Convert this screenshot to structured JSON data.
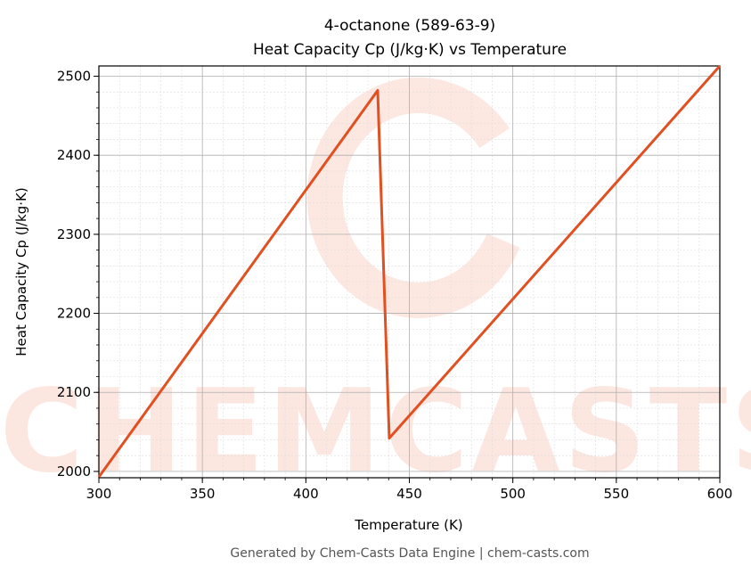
{
  "chart_data": {
    "type": "line",
    "title": "4-octanone (589-63-9)",
    "subtitle": "Heat Capacity Cp (J/kg·K) vs Temperature",
    "xlabel": "Temperature (K)",
    "ylabel": "Heat Capacity Cp (J/kg·K)",
    "xlim": [
      300,
      600
    ],
    "ylim": [
      1992,
      2513
    ],
    "xticks": [
      300,
      350,
      400,
      450,
      500,
      550,
      600
    ],
    "yticks": [
      2000,
      2100,
      2200,
      2300,
      2400,
      2500
    ],
    "grid": true,
    "series": [
      {
        "x": [
          300,
          434.7,
          440.3,
          600
        ],
        "y": [
          1993,
          2482,
          2042,
          2513
        ],
        "color": "#e05020"
      }
    ]
  },
  "footer": "Generated by Chem-Casts Data Engine | chem-casts.com",
  "watermark": "CHEMCASTS"
}
